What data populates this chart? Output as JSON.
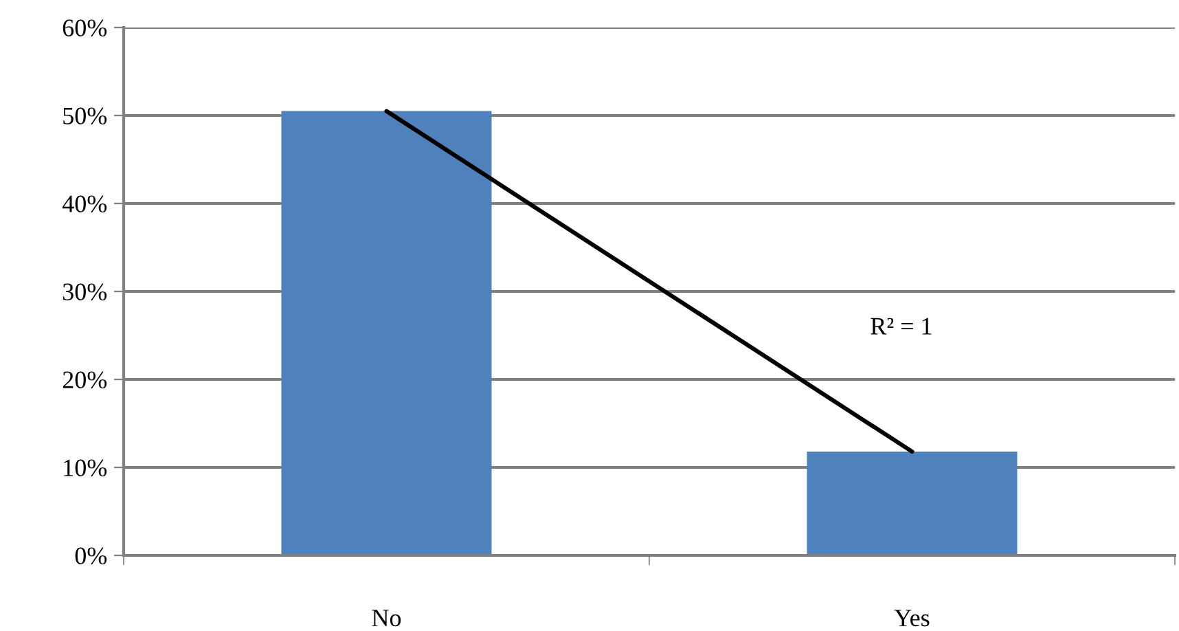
{
  "chart_data": {
    "type": "bar",
    "categories": [
      "No",
      "Yes"
    ],
    "series": [
      {
        "color": "#4f81bd",
        "values": [
          50.5,
          11.8
        ]
      },
      {
        "type": "line",
        "color": "#000000",
        "x": [
          "No",
          "Yes"
        ],
        "values": [
          50.5,
          11.8
        ]
      }
    ],
    "ylim": [
      0,
      60
    ],
    "yticks": [
      {
        "value": 0,
        "label": "0%"
      },
      {
        "value": 10,
        "label": "10%"
      },
      {
        "value": 20,
        "label": "20%"
      },
      {
        "value": 30,
        "label": "30%"
      },
      {
        "value": 40,
        "label": "40%"
      },
      {
        "value": 50,
        "label": "50%"
      },
      {
        "value": 60,
        "label": "60%"
      }
    ],
    "grid": "y",
    "annotations": [
      "R² = 1"
    ]
  }
}
